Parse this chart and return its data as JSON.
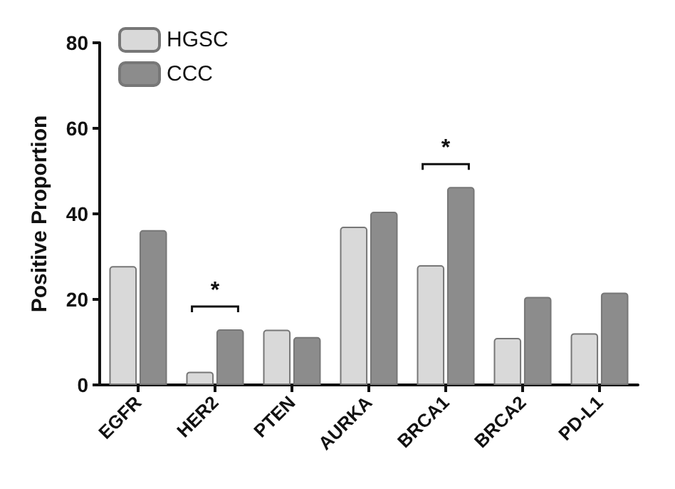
{
  "chart_data": {
    "type": "bar",
    "ylabel": "Positive Proportion",
    "categories": [
      "EGFR",
      "HER2",
      "PTEN",
      "AURKA",
      "BRCA1",
      "BRCA2",
      "PD-L1"
    ],
    "series": [
      {
        "name": "HGSC",
        "color": "#d9d9d9",
        "values": [
          27.8,
          3.1,
          12.9,
          37,
          28,
          11,
          12.1
        ]
      },
      {
        "name": "CCC",
        "color": "#8c8c8c",
        "values": [
          36.2,
          13,
          11.2,
          40.5,
          46.3,
          20.6,
          21.6
        ]
      }
    ],
    "ylim": [
      0,
      80
    ],
    "yticks": [
      0,
      20,
      40,
      60,
      80
    ],
    "grid": false,
    "legend": "top left",
    "annotations": [
      {
        "text": "*",
        "x": "HER2",
        "y": 13
      },
      {
        "text": "*",
        "x": "BRCA1",
        "y": 46.3
      }
    ]
  }
}
